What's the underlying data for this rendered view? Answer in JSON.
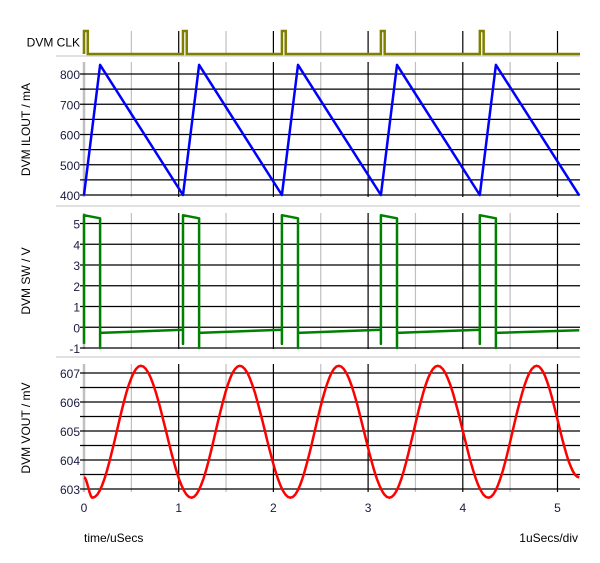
{
  "chart_data": [
    {
      "type": "line",
      "ylabel": "DVM CLK",
      "color": "#808000",
      "pulses_at_t": [
        0,
        1.045,
        2.09,
        3.135,
        4.18
      ],
      "pulse_width": 0.04
    },
    {
      "type": "line",
      "ylabel": "DVM ILOUT / mA",
      "color": "#0000ff",
      "ylim": [
        400,
        830
      ],
      "yticks": [
        400,
        500,
        600,
        700,
        800
      ],
      "ygrid_step": 50,
      "points": [
        [
          0,
          400
        ],
        [
          0.17,
          830
        ],
        [
          1.045,
          400
        ],
        [
          1.215,
          830
        ],
        [
          2.09,
          400
        ],
        [
          2.26,
          830
        ],
        [
          3.135,
          400
        ],
        [
          3.305,
          830
        ],
        [
          4.18,
          400
        ],
        [
          4.35,
          830
        ],
        [
          5.23,
          398
        ]
      ]
    },
    {
      "type": "line",
      "ylabel": "DVM SW / V",
      "color": "#008000",
      "ylim": [
        -1,
        5.4
      ],
      "yticks": [
        -1,
        0,
        1,
        2,
        3,
        4,
        5
      ],
      "ygrid_step": 1,
      "points": [
        [
          0,
          -0.8
        ],
        [
          0,
          5.4
        ],
        [
          0.17,
          5.25
        ],
        [
          0.17,
          -1
        ],
        [
          0.17,
          -0.27
        ],
        [
          1.045,
          -0.12
        ],
        [
          1.045,
          -0.8
        ],
        [
          1.045,
          5.4
        ],
        [
          1.215,
          5.25
        ],
        [
          1.215,
          -1
        ],
        [
          1.215,
          -0.27
        ],
        [
          2.09,
          -0.12
        ],
        [
          2.09,
          -0.8
        ],
        [
          2.09,
          5.4
        ],
        [
          2.26,
          5.25
        ],
        [
          2.26,
          -1
        ],
        [
          2.26,
          -0.27
        ],
        [
          3.135,
          -0.12
        ],
        [
          3.135,
          -0.8
        ],
        [
          3.135,
          5.4
        ],
        [
          3.305,
          5.25
        ],
        [
          3.305,
          -1
        ],
        [
          3.305,
          -0.27
        ],
        [
          4.18,
          -0.12
        ],
        [
          4.18,
          -0.8
        ],
        [
          4.18,
          5.4
        ],
        [
          4.35,
          5.25
        ],
        [
          4.35,
          -1
        ],
        [
          4.35,
          -0.27
        ],
        [
          5.23,
          -0.14
        ]
      ]
    },
    {
      "type": "line",
      "ylabel": "DVM VOUT / mV",
      "color": "#ff0000",
      "ylim": [
        602.7,
        607.25
      ],
      "yticks": [
        603,
        604,
        605,
        606,
        607
      ],
      "ygrid_step": 0.5,
      "points": [
        [
          0,
          603.4
        ],
        [
          0.09,
          602.7
        ],
        [
          0.6,
          607.25
        ],
        [
          1.135,
          602.7
        ],
        [
          1.645,
          607.25
        ],
        [
          2.18,
          602.7
        ],
        [
          2.69,
          607.25
        ],
        [
          3.225,
          602.7
        ],
        [
          3.735,
          607.25
        ],
        [
          4.27,
          602.7
        ],
        [
          4.78,
          607.25
        ],
        [
          5.23,
          603.4
        ]
      ]
    }
  ],
  "xaxis": {
    "label": "time/uSecs",
    "scale_label": "1uSecs/div",
    "ticks": [
      0,
      1,
      2,
      3,
      4,
      5
    ],
    "xlim": [
      0,
      5.23
    ],
    "grid_major": 1,
    "grid_minor": 0.5
  }
}
